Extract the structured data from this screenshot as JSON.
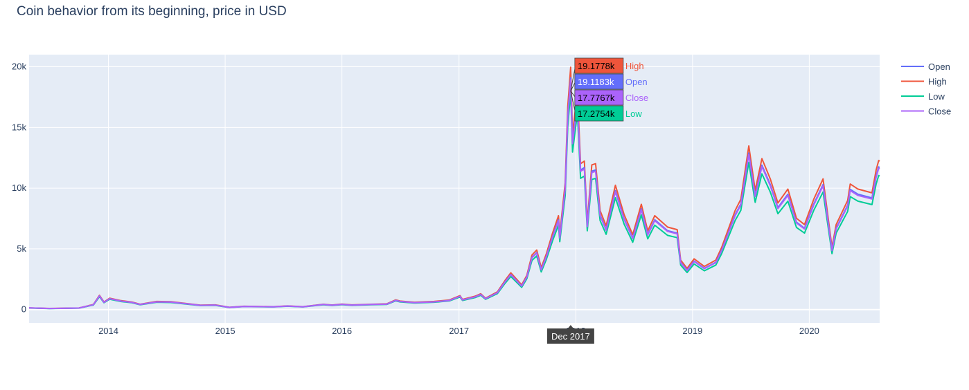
{
  "chart_data": {
    "type": "line",
    "title": "Coin behavior from its beginning, price in USD",
    "xlabel": "",
    "ylabel": "",
    "x_ticks": [
      "2014",
      "2015",
      "2016",
      "2017",
      "2018",
      "2019",
      "2020"
    ],
    "y_ticks": [
      "0",
      "5k",
      "10k",
      "15k",
      "20k"
    ],
    "xlim": [
      "2013-04-28",
      "2020-08-08"
    ],
    "ylim": [
      -1100,
      21000
    ],
    "grid": true,
    "legend_position": "top-right",
    "series": [
      {
        "name": "Open",
        "color": "#636efa"
      },
      {
        "name": "High",
        "color": "#ef553b"
      },
      {
        "name": "Low",
        "color": "#00cc96"
      },
      {
        "name": "Close",
        "color": "#ab63fa"
      }
    ],
    "points": [
      [
        "2013-04-28",
        135
      ],
      [
        "2013-07-01",
        90
      ],
      [
        "2013-10-01",
        125
      ],
      [
        "2013-11-15",
        400
      ],
      [
        "2013-12-04",
        1130
      ],
      [
        "2013-12-18",
        600
      ],
      [
        "2014-01-05",
        900
      ],
      [
        "2014-02-10",
        700
      ],
      [
        "2014-03-15",
        600
      ],
      [
        "2014-04-10",
        420
      ],
      [
        "2014-06-01",
        640
      ],
      [
        "2014-07-15",
        620
      ],
      [
        "2014-09-01",
        480
      ],
      [
        "2014-10-15",
        350
      ],
      [
        "2014-12-01",
        370
      ],
      [
        "2015-01-14",
        180
      ],
      [
        "2015-03-01",
        260
      ],
      [
        "2015-06-01",
        230
      ],
      [
        "2015-07-15",
        290
      ],
      [
        "2015-09-01",
        230
      ],
      [
        "2015-11-04",
        420
      ],
      [
        "2015-12-01",
        360
      ],
      [
        "2016-01-01",
        430
      ],
      [
        "2016-02-01",
        370
      ],
      [
        "2016-04-01",
        420
      ],
      [
        "2016-05-20",
        450
      ],
      [
        "2016-06-17",
        760
      ],
      [
        "2016-07-01",
        670
      ],
      [
        "2016-08-15",
        575
      ],
      [
        "2016-10-15",
        640
      ],
      [
        "2016-12-01",
        750
      ],
      [
        "2017-01-04",
        1100
      ],
      [
        "2017-01-12",
        800
      ],
      [
        "2017-02-20",
        1050
      ],
      [
        "2017-03-10",
        1250
      ],
      [
        "2017-03-25",
        900
      ],
      [
        "2017-05-01",
        1400
      ],
      [
        "2017-05-25",
        2300
      ],
      [
        "2017-06-12",
        2900
      ],
      [
        "2017-07-16",
        1950
      ],
      [
        "2017-08-01",
        2700
      ],
      [
        "2017-08-17",
        4300
      ],
      [
        "2017-09-01",
        4700
      ],
      [
        "2017-09-15",
        3300
      ],
      [
        "2017-10-01",
        4400
      ],
      [
        "2017-10-20",
        6000
      ],
      [
        "2017-11-08",
        7400
      ],
      [
        "2017-11-12",
        5950
      ],
      [
        "2017-11-29",
        10000
      ],
      [
        "2017-12-07",
        16000
      ],
      [
        "2017-12-16",
        19100
      ],
      [
        "2017-12-22",
        13800
      ],
      [
        "2018-01-06",
        17200
      ],
      [
        "2018-01-16",
        11500
      ],
      [
        "2018-01-28",
        11700
      ],
      [
        "2018-02-06",
        6900
      ],
      [
        "2018-02-20",
        11400
      ],
      [
        "2018-03-04",
        11500
      ],
      [
        "2018-03-18",
        7800
      ],
      [
        "2018-04-06",
        6600
      ],
      [
        "2018-05-05",
        9800
      ],
      [
        "2018-06-01",
        7500
      ],
      [
        "2018-06-28",
        5900
      ],
      [
        "2018-07-25",
        8300
      ],
      [
        "2018-08-14",
        6200
      ],
      [
        "2018-09-05",
        7400
      ],
      [
        "2018-10-15",
        6500
      ],
      [
        "2018-11-14",
        6300
      ],
      [
        "2018-11-25",
        3900
      ],
      [
        "2018-12-15",
        3250
      ],
      [
        "2019-01-06",
        4000
      ],
      [
        "2019-02-07",
        3400
      ],
      [
        "2019-03-15",
        3900
      ],
      [
        "2019-04-02",
        4900
      ],
      [
        "2019-05-14",
        7800
      ],
      [
        "2019-06-01",
        8700
      ],
      [
        "2019-06-26",
        12900
      ],
      [
        "2019-07-16",
        9400
      ],
      [
        "2019-08-06",
        11900
      ],
      [
        "2019-09-01",
        10300
      ],
      [
        "2019-09-25",
        8400
      ],
      [
        "2019-10-26",
        9500
      ],
      [
        "2019-11-22",
        7200
      ],
      [
        "2019-12-17",
        6700
      ],
      [
        "2020-01-15",
        8700
      ],
      [
        "2020-02-13",
        10300
      ],
      [
        "2020-03-12",
        4900
      ],
      [
        "2020-03-25",
        6700
      ],
      [
        "2020-04-30",
        8600
      ],
      [
        "2020-05-08",
        9900
      ],
      [
        "2020-06-01",
        9500
      ],
      [
        "2020-07-15",
        9200
      ],
      [
        "2020-07-28",
        11000
      ],
      [
        "2020-08-05",
        11750
      ],
      [
        "2020-08-08",
        11700
      ]
    ],
    "hover": {
      "x_label": "Dec 2017",
      "date": "2017-12-16",
      "entries": [
        {
          "value": "19.1778k",
          "name": "High",
          "numeric": 19178,
          "color": "#ef553b",
          "text_color": "#000000"
        },
        {
          "value": "19.1183k",
          "name": "Open",
          "numeric": 19118,
          "color": "#636efa",
          "text_color": "#ffffff"
        },
        {
          "value": "17.7767k",
          "name": "Close",
          "numeric": 17777,
          "color": "#ab63fa",
          "text_color": "#000000"
        },
        {
          "value": "17.2754k",
          "name": "Low",
          "numeric": 17275,
          "color": "#00cc96",
          "text_color": "#000000"
        }
      ]
    }
  }
}
